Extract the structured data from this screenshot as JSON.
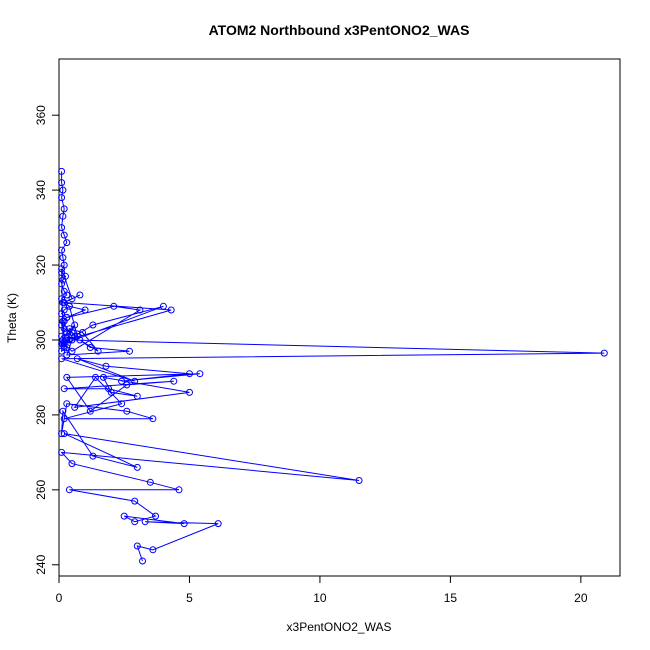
{
  "chart_data": {
    "type": "line",
    "title": "ATOM2 Northbound x3PentONO2_WAS",
    "xlabel": "x3PentONO2_WAS",
    "ylabel": "Theta (K)",
    "xlim": [
      0,
      21.5
    ],
    "ylim": [
      237,
      375
    ],
    "xticks": [
      0,
      5,
      10,
      15,
      20
    ],
    "yticks": [
      240,
      260,
      280,
      300,
      320,
      340,
      360
    ],
    "grid": false,
    "legend": "none",
    "style": "line with open circle markers",
    "color": "#0000ff",
    "series": [
      {
        "x": [
          0.1,
          0.1,
          0.15,
          0.1,
          0.2,
          0.15,
          0.1,
          0.2,
          0.3,
          0.1,
          0.15,
          0.2,
          0.1,
          0.25,
          0.15,
          0.1,
          0.2,
          0.3,
          0.1,
          0.15,
          0.4,
          0.2,
          0.1,
          0.3,
          0.15,
          0.1,
          0.2,
          0.5,
          0.1,
          0.25,
          0.15,
          0.3,
          0.1,
          0.2,
          0.4,
          0.1,
          0.2,
          0.6,
          0.3,
          0.15,
          0.1,
          0.5,
          0.8,
          0.2,
          4.3,
          0.3,
          0.7,
          0.4,
          1.0,
          0.3,
          2.1,
          3.1,
          0.5,
          0.2,
          4.0,
          1.3,
          0.6,
          0.4,
          0.9,
          1.5,
          0.8,
          1.2,
          2.7,
          0.3,
          0.5,
          20.9,
          0.1,
          2.9,
          0.7,
          1.8,
          5.0,
          2.4,
          5.4,
          0.3,
          1.2,
          2.6,
          4.4,
          0.2,
          1.9,
          3.0,
          2.0,
          1.7,
          5.0,
          0.6,
          1.4,
          2.4,
          0.2,
          3.6,
          2.6,
          0.3,
          0.1,
          0.15,
          1.3,
          3.0,
          0.2,
          11.5,
          0.1,
          0.5,
          3.5,
          4.6,
          0.4,
          2.9,
          3.7,
          2.9,
          2.5,
          4.8,
          3.3,
          6.1,
          3.6,
          3.0,
          3.2
        ],
        "y": [
          345,
          342,
          340,
          338,
          335,
          333,
          330,
          328,
          326,
          324,
          322,
          320,
          318,
          317,
          316,
          315,
          313,
          312,
          311,
          310,
          309,
          308,
          307,
          306,
          305,
          304,
          303,
          302,
          301,
          300,
          299,
          298,
          297,
          305,
          300,
          299,
          298,
          304,
          302,
          300,
          319,
          311,
          312,
          310,
          308,
          300,
          301,
          309,
          308,
          306,
          309,
          308,
          297,
          299,
          309,
          304,
          301,
          303,
          302,
          297,
          300,
          298,
          297,
          296,
          300,
          296.5,
          295,
          289,
          295,
          293,
          291,
          289,
          291,
          290,
          281,
          288,
          289,
          287,
          287,
          285,
          286,
          290,
          286,
          282,
          290,
          283,
          279,
          279,
          281,
          283,
          275,
          281,
          269,
          266,
          275,
          262.5,
          270,
          267,
          262,
          260,
          260,
          257,
          253,
          251.5,
          253,
          251,
          251.5,
          251,
          244,
          245,
          241
        ]
      }
    ]
  }
}
